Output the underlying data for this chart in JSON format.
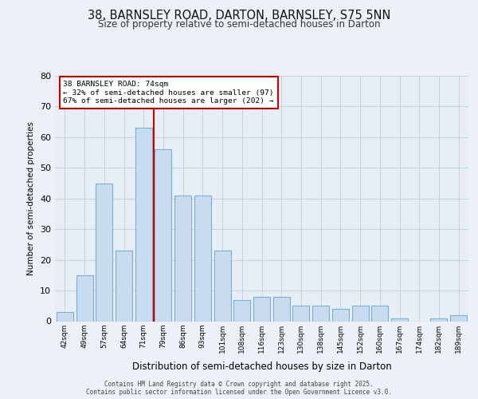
{
  "title_line1": "38, BARNSLEY ROAD, DARTON, BARNSLEY, S75 5NN",
  "title_line2": "Size of property relative to semi-detached houses in Darton",
  "xlabel": "Distribution of semi-detached houses by size in Darton",
  "ylabel": "Number of semi-detached properties",
  "categories": [
    "42sqm",
    "49sqm",
    "57sqm",
    "64sqm",
    "71sqm",
    "79sqm",
    "86sqm",
    "93sqm",
    "101sqm",
    "108sqm",
    "116sqm",
    "123sqm",
    "130sqm",
    "138sqm",
    "145sqm",
    "152sqm",
    "160sqm",
    "167sqm",
    "174sqm",
    "182sqm",
    "189sqm"
  ],
  "values": [
    3,
    15,
    45,
    23,
    63,
    56,
    41,
    41,
    23,
    7,
    8,
    8,
    5,
    5,
    4,
    5,
    5,
    1,
    0,
    1,
    2
  ],
  "bar_color": "#c9dcef",
  "bar_edge_color": "#7ab0d5",
  "vline_color": "#cc0000",
  "vline_position": 4.5,
  "annotation_line1": "38 BARNSLEY ROAD: 74sqm",
  "annotation_line2": "← 32% of semi-detached houses are smaller (97)",
  "annotation_line3": "67% of semi-detached houses are larger (202) →",
  "annotation_box_facecolor": "#ffffff",
  "annotation_box_edgecolor": "#cc0000",
  "ylim": [
    0,
    80
  ],
  "yticks": [
    0,
    10,
    20,
    30,
    40,
    50,
    60,
    70,
    80
  ],
  "grid_color": "#c5d0de",
  "plot_bg_color": "#e8eef5",
  "fig_bg_color": "#edf1f7",
  "footer_line1": "Contains HM Land Registry data © Crown copyright and database right 2025.",
  "footer_line2": "Contains public sector information licensed under the Open Government Licence v3.0."
}
